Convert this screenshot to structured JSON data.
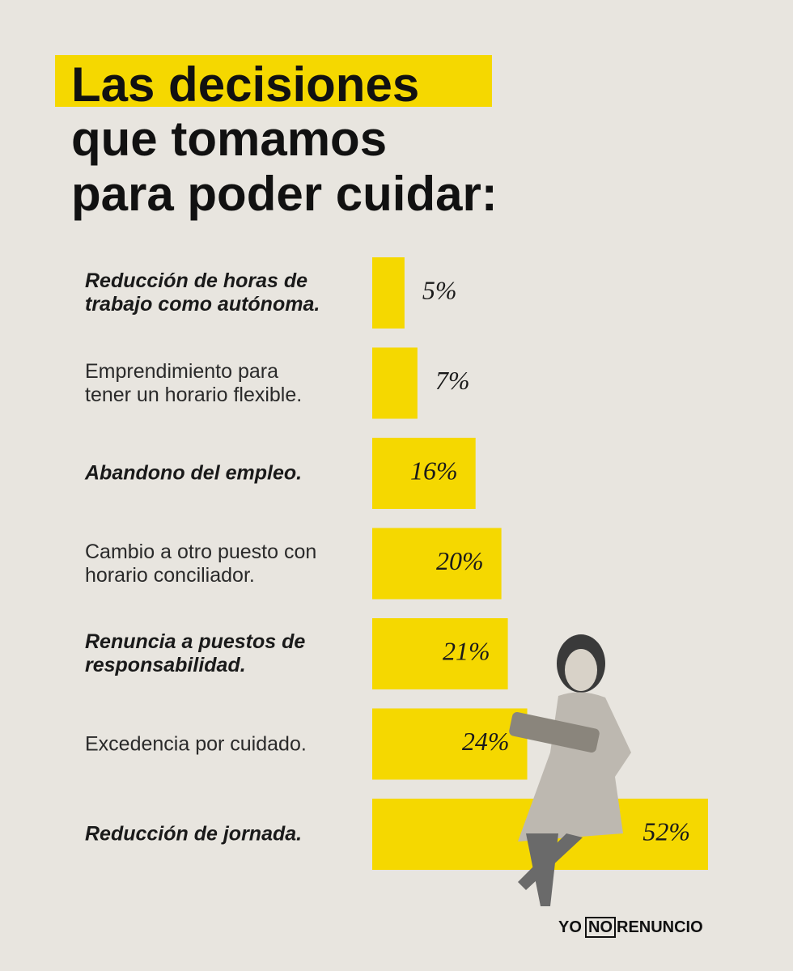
{
  "chart_data": {
    "type": "bar",
    "orientation": "horizontal",
    "title_lines": [
      "Las decisiones",
      "que tomamos",
      "para poder cuidar:"
    ],
    "categories": [
      "Reducción de horas de trabajo como autónoma.",
      "Emprendimiento para tener un horario flexible.",
      "Abandono del empleo.",
      "Cambio a otro puesto con horario conciliador.",
      "Renuncia a puestos de responsabilidad.",
      "Excedencia por cuidado.",
      "Reducción de jornada."
    ],
    "values": [
      5,
      7,
      16,
      20,
      21,
      24,
      52
    ],
    "value_labels": [
      "5%",
      "7%",
      "16%",
      "20%",
      "21%",
      "24%",
      "52%"
    ],
    "color": "#f5d800",
    "brand": [
      "YO",
      "NO",
      "RENUNCIO"
    ]
  }
}
